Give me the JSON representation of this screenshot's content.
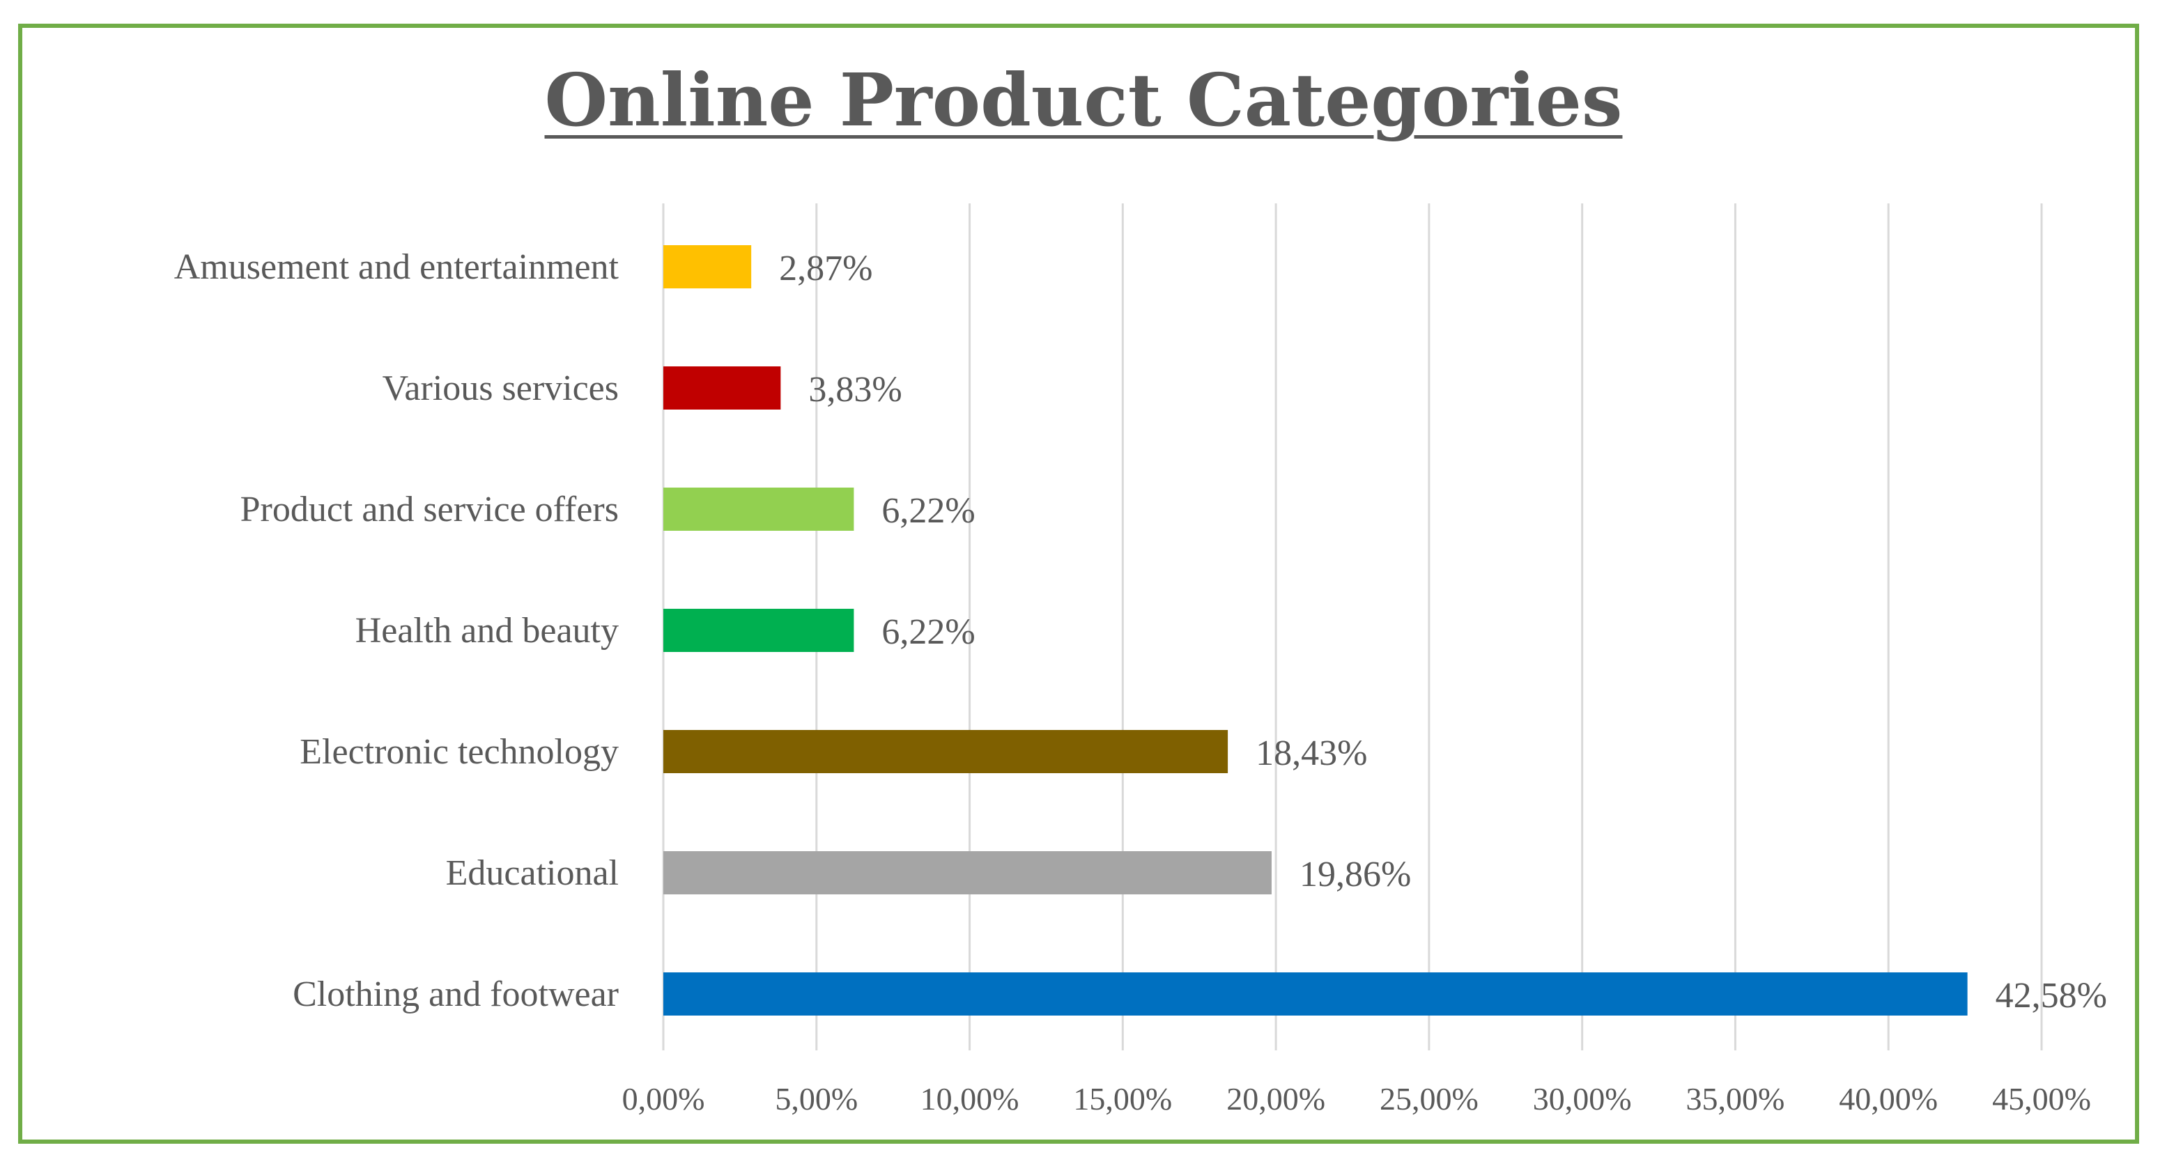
{
  "chart_data": {
    "type": "bar",
    "orientation": "horizontal",
    "title": "Online Product Categories",
    "categories": [
      "Clothing and footwear",
      "Educational",
      "Electronic technology",
      "Health and beauty",
      "Product and service offers",
      "Various services",
      "Amusement and entertainment"
    ],
    "values": [
      42.58,
      19.86,
      18.43,
      6.22,
      6.22,
      3.83,
      2.87
    ],
    "data_labels": [
      "42,58%",
      "19,86%",
      "18,43%",
      "6,22%",
      "6,22%",
      "3,83%",
      "2,87%"
    ],
    "colors": [
      "#0070c0",
      "#a5a5a5",
      "#7f6000",
      "#00b050",
      "#92d050",
      "#c00000",
      "#ffc000"
    ],
    "xlim": [
      0,
      45
    ],
    "x_ticks": [
      0,
      5,
      10,
      15,
      20,
      25,
      30,
      35,
      40,
      45
    ],
    "x_tick_labels": [
      "0,00%",
      "5,00%",
      "10,00%",
      "15,00%",
      "20,00%",
      "25,00%",
      "30,00%",
      "35,00%",
      "40,00%",
      "45,00%"
    ],
    "grid": "vertical",
    "legend": "none",
    "xlabel": "",
    "ylabel": ""
  }
}
